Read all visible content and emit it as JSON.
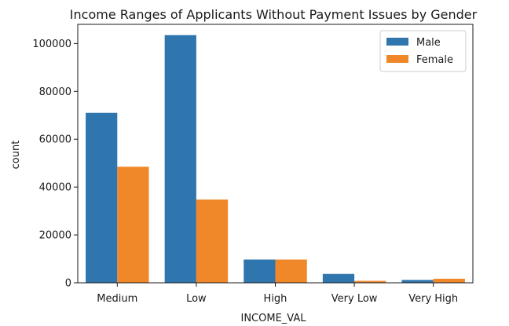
{
  "chart_data": {
    "type": "bar",
    "title": "Income Ranges of Applicants Without Payment Issues by Gender",
    "xlabel": "INCOME_VAL",
    "ylabel": "count",
    "categories": [
      "Medium",
      "Low",
      "High",
      "Very Low",
      "Very High"
    ],
    "series": [
      {
        "name": "Male",
        "color": "#2f76ae",
        "values": [
          71000,
          103500,
          9700,
          3700,
          1200
        ]
      },
      {
        "name": "Female",
        "color": "#f0882a",
        "values": [
          48500,
          34800,
          9700,
          800,
          1700
        ]
      }
    ],
    "ylim": [
      0,
      108000
    ],
    "yticks": [
      0,
      20000,
      40000,
      60000,
      80000,
      100000
    ],
    "grid": false,
    "legend_position": "top-right"
  }
}
